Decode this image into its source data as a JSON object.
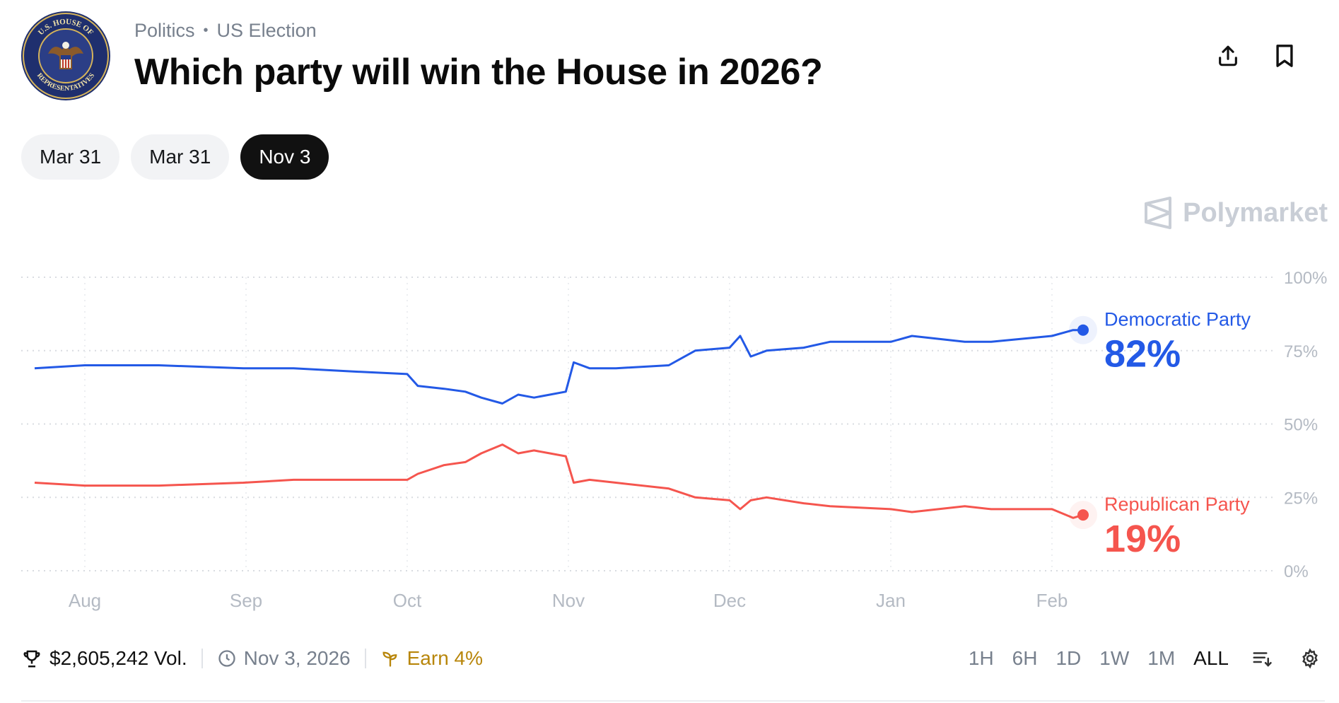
{
  "header": {
    "breadcrumb": [
      "Politics",
      "US Election"
    ],
    "title": "Which party will win the House in 2026?",
    "seal_text_top": "U.S. HOUSE OF",
    "seal_text_bottom": "REPRESENTATIVES",
    "actions": {
      "share_icon": "share-icon",
      "bookmark_icon": "bookmark-icon"
    }
  },
  "date_tabs": [
    {
      "label": "Mar 31",
      "active": false
    },
    {
      "label": "Mar 31",
      "active": false
    },
    {
      "label": "Nov 3",
      "active": true
    }
  ],
  "brand": {
    "name": "Polymarket"
  },
  "colors": {
    "democratic": "#2359e6",
    "republican": "#f5554e",
    "grid": "#d9dce1",
    "axis_text": "#b4bac3"
  },
  "chart_data": {
    "type": "line",
    "title": "",
    "xlabel": "",
    "ylabel": "",
    "x_ticks": [
      "Aug",
      "Sep",
      "Oct",
      "Nov",
      "Dec",
      "Jan",
      "Feb"
    ],
    "y_ticks": [
      "100%",
      "75%",
      "50%",
      "25%",
      "0%"
    ],
    "ylim": [
      0,
      100
    ],
    "grid": true,
    "x": [
      "Jul 22",
      "Aug 1",
      "Aug 15",
      "Aug 31",
      "Sep 10",
      "Sep 20",
      "Oct 1",
      "Oct 3",
      "Oct 8",
      "Oct 12",
      "Oct 15",
      "Oct 19",
      "Oct 22",
      "Oct 25",
      "Oct 28",
      "Oct 31",
      "Nov 2",
      "Nov 5",
      "Nov 10",
      "Nov 20",
      "Nov 25",
      "Dec 1",
      "Dec 3",
      "Dec 5",
      "Dec 8",
      "Dec 15",
      "Dec 20",
      "Jan 1",
      "Jan 5",
      "Jan 15",
      "Jan 20",
      "Feb 1",
      "Feb 5",
      "Feb 10"
    ],
    "series": [
      {
        "name": "Democratic Party",
        "current_label": "82%",
        "values": [
          69,
          70,
          70,
          69,
          69,
          68,
          67,
          63,
          62,
          61,
          59,
          57,
          60,
          59,
          60,
          61,
          71,
          69,
          69,
          70,
          75,
          76,
          80,
          73,
          75,
          76,
          78,
          78,
          80,
          78,
          78,
          80,
          82,
          82
        ]
      },
      {
        "name": "Republican Party",
        "current_label": "19%",
        "values": [
          30,
          29,
          29,
          30,
          31,
          31,
          31,
          33,
          36,
          37,
          40,
          43,
          40,
          41,
          40,
          39,
          30,
          31,
          30,
          28,
          25,
          24,
          21,
          24,
          25,
          23,
          22,
          21,
          20,
          22,
          21,
          21,
          18,
          19
        ]
      }
    ]
  },
  "footer": {
    "volume": "$2,605,242 Vol.",
    "end_date": "Nov 3, 2026",
    "earn": "Earn 4%",
    "ranges": [
      "1H",
      "6H",
      "1D",
      "1W",
      "1M",
      "ALL"
    ],
    "active_range": "ALL"
  }
}
